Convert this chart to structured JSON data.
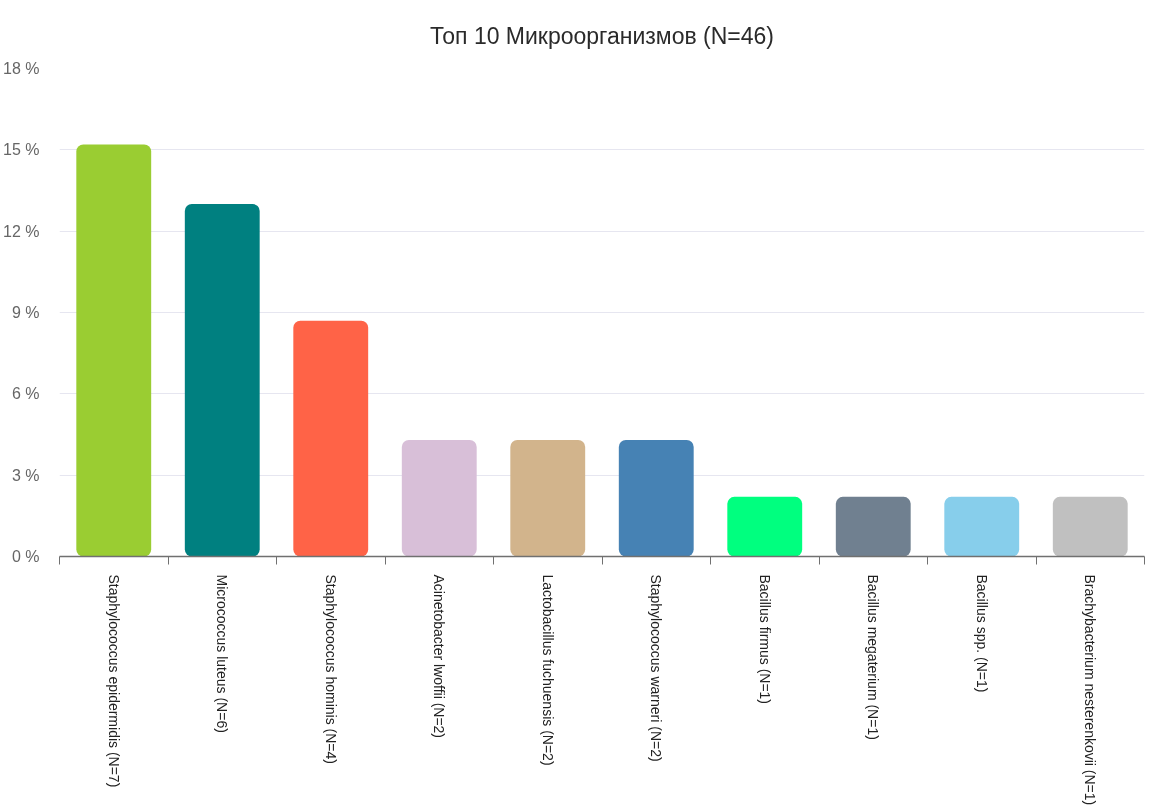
{
  "chart_data": {
    "type": "bar",
    "title": "Топ 10 Микроорганизмов (N=46)",
    "categories": [
      "Staphylococcus epidermidis (N=7)",
      "Micrococcus luteus (N=6)",
      "Staphylococcus hominis (N=4)",
      "Acinetobacter lwoffii (N=2)",
      "Lactobacillus fuchuensis (N=2)",
      "Staphylococcus warneri (N=2)",
      "Bacillus firmus (N=1)",
      "Bacillus megaterium (N=1)",
      "Bacillus spp. (N=1)",
      "Brachybacterium nesterenkovii (N=1)"
    ],
    "values": [
      15.2,
      13.0,
      8.7,
      4.3,
      4.3,
      4.3,
      2.2,
      2.2,
      2.2,
      2.2
    ],
    "colors": [
      "#9acd32",
      "#008080",
      "#ff6347",
      "#d8bfd8",
      "#d2b48c",
      "#4682b4",
      "#00ff7f",
      "#708090",
      "#87ceeb",
      "#c0c0c0"
    ],
    "ylim": [
      0,
      18
    ],
    "yticks": [
      {
        "value": 0,
        "label": "0 %"
      },
      {
        "value": 3,
        "label": "3 %"
      },
      {
        "value": 6,
        "label": "6 %"
      },
      {
        "value": 9,
        "label": "9 %"
      },
      {
        "value": 12,
        "label": "12 %"
      },
      {
        "value": 15,
        "label": "15 %"
      },
      {
        "value": 18,
        "label": "18 %"
      }
    ],
    "grid": "y"
  }
}
